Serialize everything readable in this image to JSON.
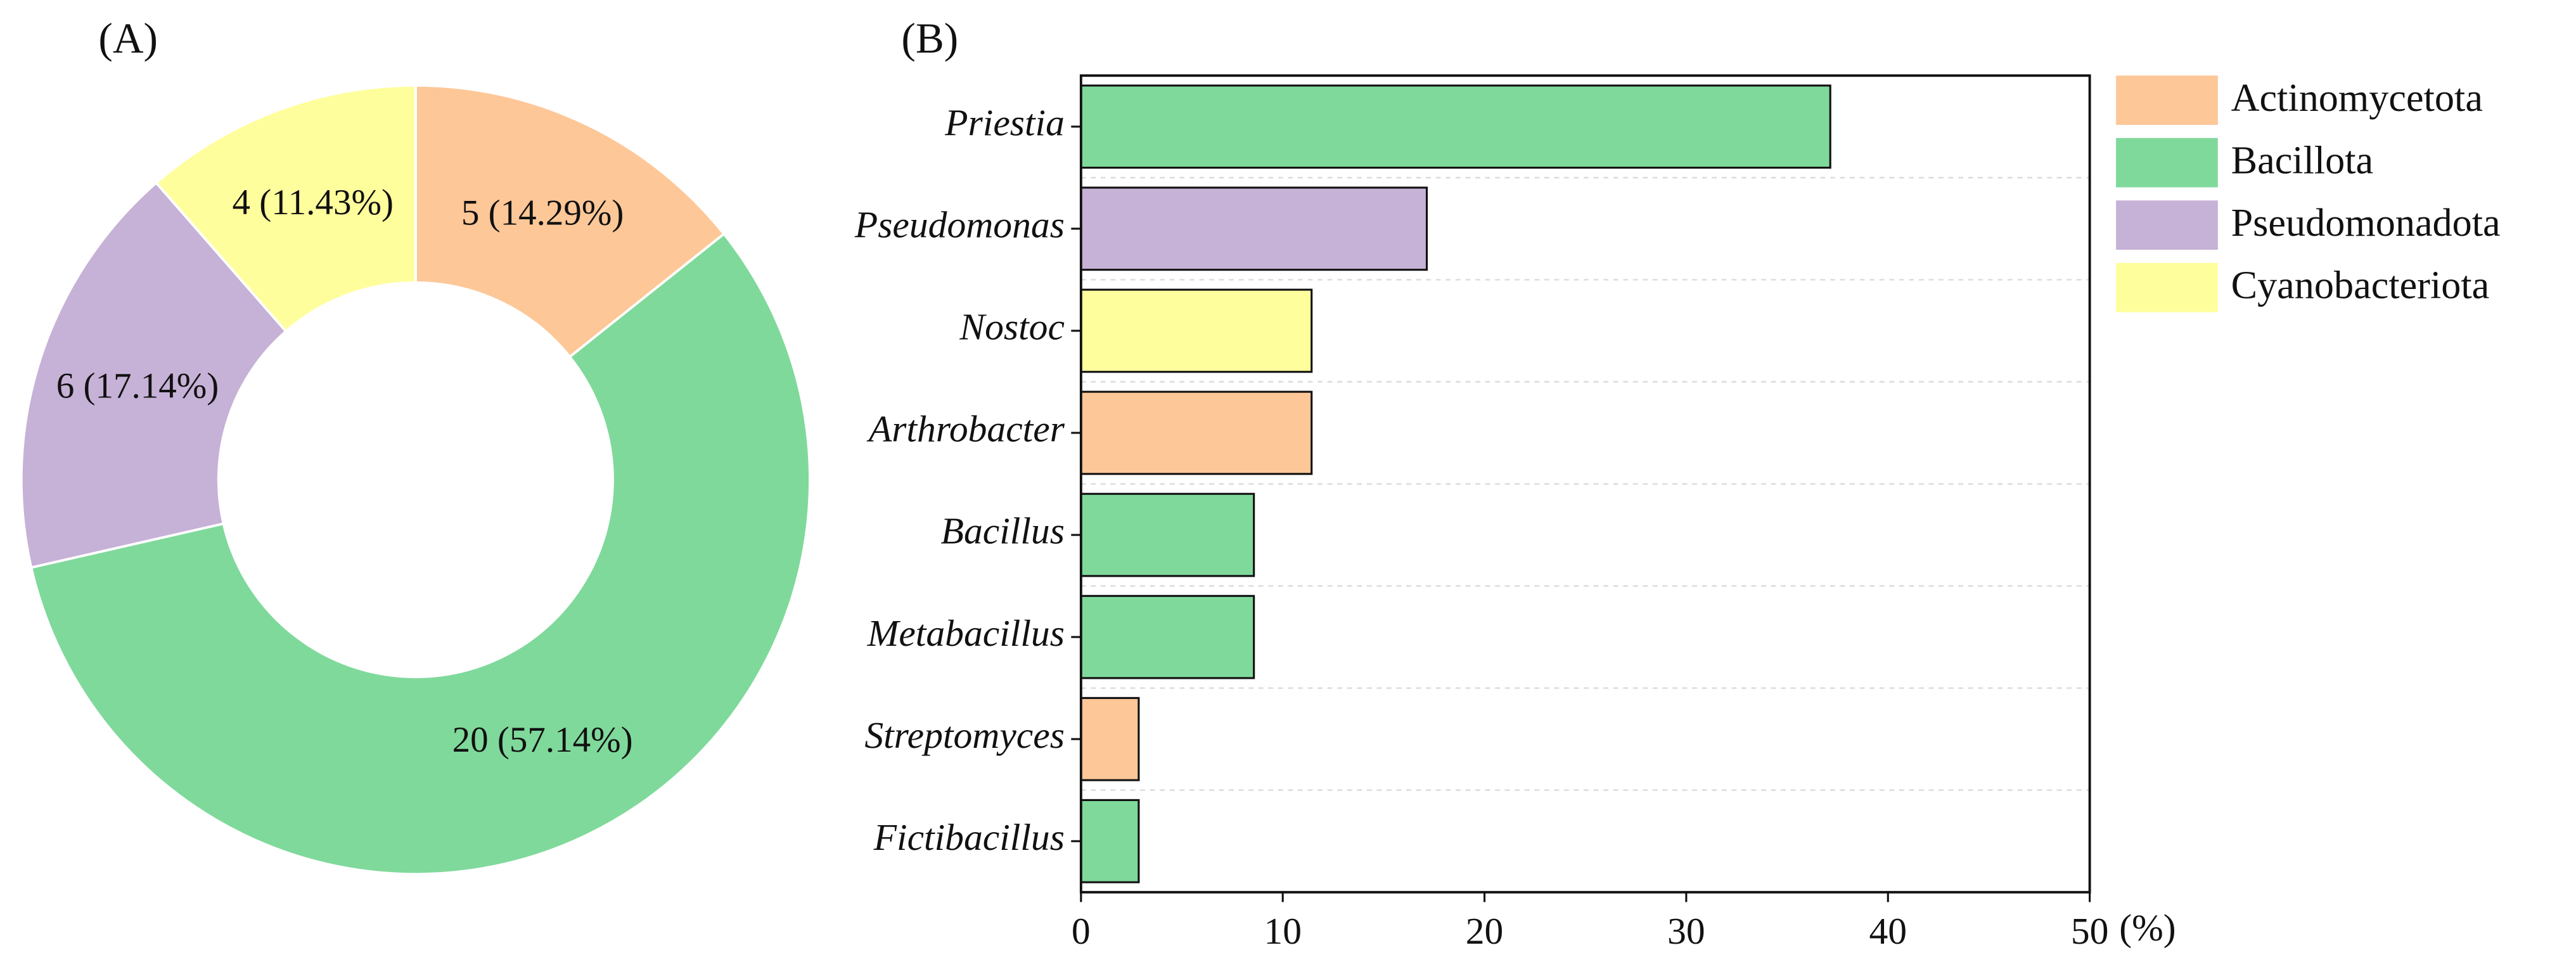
{
  "chart_data": [
    {
      "type": "pie",
      "panel_label": "(A)",
      "categories": [
        "Actinomycetota",
        "Bacillota",
        "Pseudomonadota",
        "Cyanobacteriota"
      ],
      "values": [
        5,
        20,
        6,
        4
      ],
      "value_labels": [
        "5 (14.29%)",
        "20 (57.14%)",
        "6 (17.14%)",
        "4 (11.43%)"
      ],
      "colors": [
        "#fdc797",
        "#7fd99b",
        "#c6b1d7",
        "#fffe9d"
      ],
      "donut": true,
      "legend": "right"
    },
    {
      "type": "bar",
      "orientation": "horizontal",
      "panel_label": "(B)",
      "categories": [
        "Priestia",
        "Pseudomonas",
        "Nostoc",
        "Arthrobacter",
        "Bacillus",
        "Metabacillus",
        "Streptomyces",
        "Fictibacillus"
      ],
      "values": [
        37.14,
        17.14,
        11.43,
        11.43,
        8.57,
        8.57,
        2.86,
        2.86
      ],
      "colors": [
        "#7fd99b",
        "#c6b1d7",
        "#fffe9d",
        "#fdc797",
        "#7fd99b",
        "#7fd99b",
        "#fdc797",
        "#7fd99b"
      ],
      "xlim": [
        0,
        50
      ],
      "xticks": [
        0,
        10,
        20,
        30,
        40,
        50
      ],
      "xlabel": "(%)",
      "grid": true
    }
  ]
}
